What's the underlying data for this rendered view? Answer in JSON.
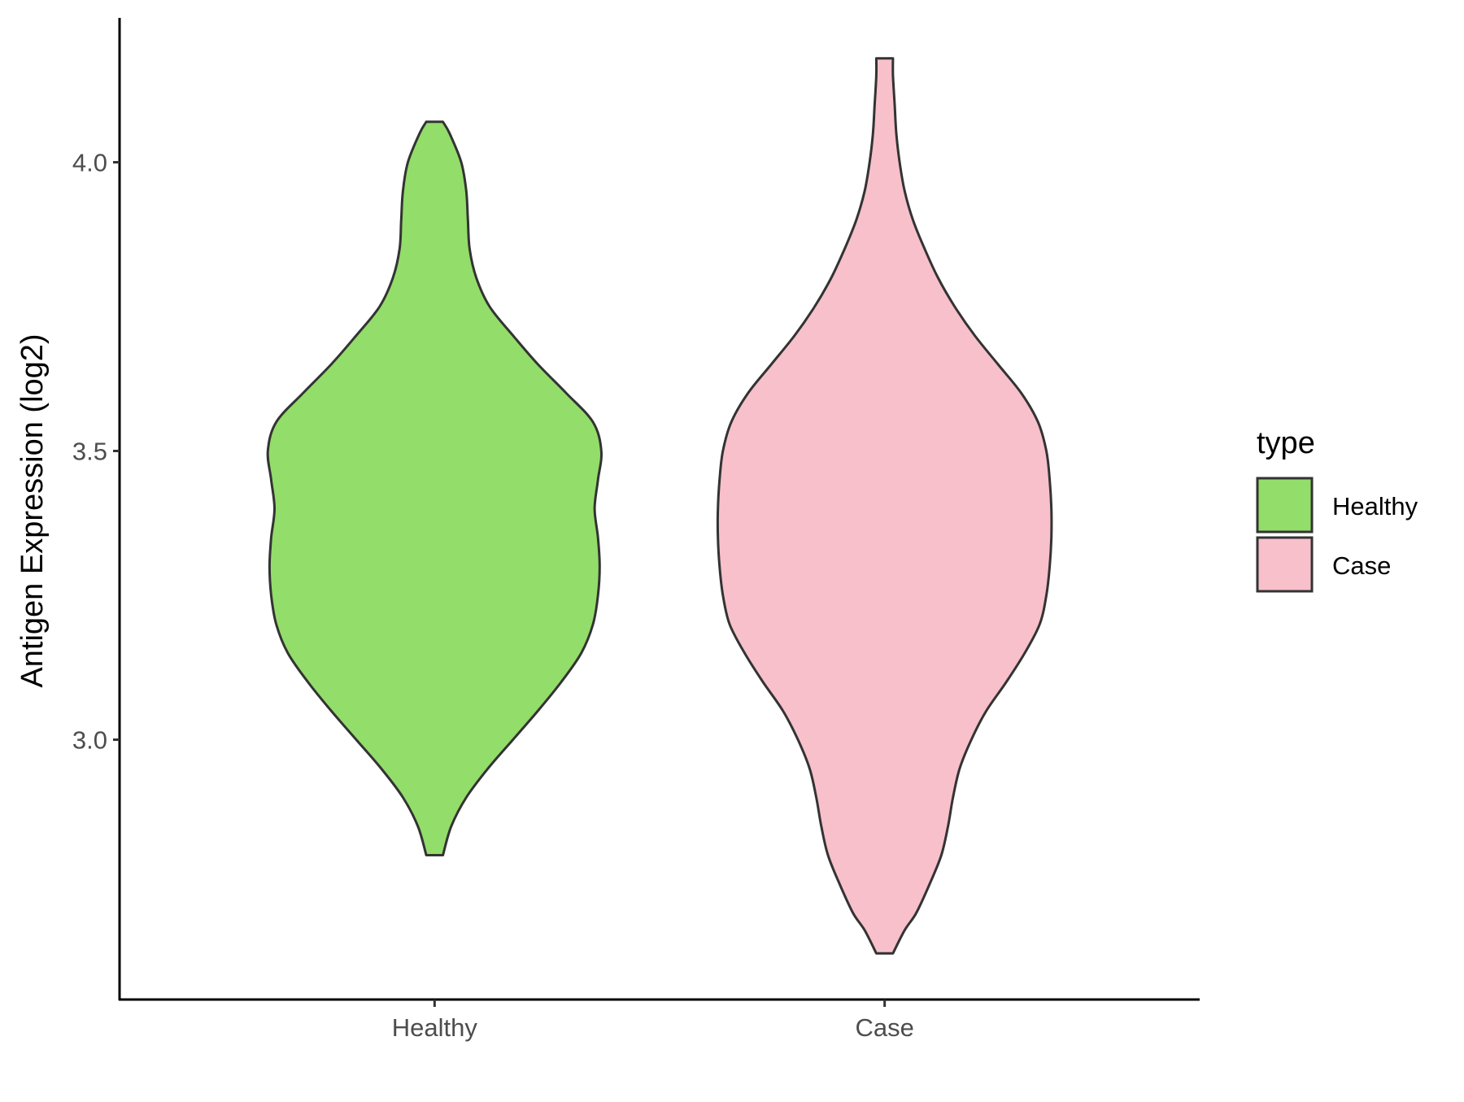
{
  "chart_data": {
    "type": "violin",
    "title": "",
    "xlabel": "",
    "ylabel": "Antigen Expression (log2)",
    "categories": [
      "Healthy",
      "Case"
    ],
    "y_ticks": [
      "3.0",
      "3.5",
      "4.0"
    ],
    "y_tick_values": [
      3.0,
      3.5,
      4.0
    ],
    "ylim": [
      2.55,
      4.25
    ],
    "grid": false,
    "legend": {
      "title": "type",
      "placement": "right",
      "entries": [
        {
          "label": "Healthy",
          "color": "#93DD6A"
        },
        {
          "label": "Case",
          "color": "#F7C0CB"
        }
      ]
    },
    "series": [
      {
        "name": "Healthy",
        "color": "#93DD6A",
        "min": 2.8,
        "max": 4.07,
        "density_profile": [
          [
            2.8,
            0.05
          ],
          [
            2.85,
            0.1
          ],
          [
            2.9,
            0.19
          ],
          [
            2.95,
            0.32
          ],
          [
            3.0,
            0.47
          ],
          [
            3.05,
            0.62
          ],
          [
            3.1,
            0.76
          ],
          [
            3.15,
            0.88
          ],
          [
            3.2,
            0.95
          ],
          [
            3.25,
            0.98
          ],
          [
            3.3,
            0.99
          ],
          [
            3.35,
            0.98
          ],
          [
            3.4,
            0.96
          ],
          [
            3.45,
            0.98
          ],
          [
            3.5,
            1.0
          ],
          [
            3.55,
            0.95
          ],
          [
            3.6,
            0.79
          ],
          [
            3.65,
            0.62
          ],
          [
            3.7,
            0.47
          ],
          [
            3.75,
            0.33
          ],
          [
            3.8,
            0.25
          ],
          [
            3.85,
            0.21
          ],
          [
            3.9,
            0.2
          ],
          [
            3.95,
            0.19
          ],
          [
            4.0,
            0.16
          ],
          [
            4.05,
            0.09
          ],
          [
            4.07,
            0.05
          ]
        ]
      },
      {
        "name": "Case",
        "color": "#F7C0CB",
        "min": 2.63,
        "max": 4.18,
        "density_profile": [
          [
            2.63,
            0.05
          ],
          [
            2.67,
            0.12
          ],
          [
            2.7,
            0.19
          ],
          [
            2.75,
            0.27
          ],
          [
            2.8,
            0.34
          ],
          [
            2.85,
            0.38
          ],
          [
            2.9,
            0.41
          ],
          [
            2.95,
            0.45
          ],
          [
            3.0,
            0.52
          ],
          [
            3.05,
            0.61
          ],
          [
            3.1,
            0.73
          ],
          [
            3.15,
            0.84
          ],
          [
            3.2,
            0.93
          ],
          [
            3.25,
            0.97
          ],
          [
            3.3,
            0.99
          ],
          [
            3.35,
            1.0
          ],
          [
            3.4,
            1.0
          ],
          [
            3.45,
            0.99
          ],
          [
            3.5,
            0.97
          ],
          [
            3.55,
            0.92
          ],
          [
            3.6,
            0.82
          ],
          [
            3.65,
            0.68
          ],
          [
            3.7,
            0.54
          ],
          [
            3.75,
            0.42
          ],
          [
            3.8,
            0.32
          ],
          [
            3.85,
            0.24
          ],
          [
            3.9,
            0.17
          ],
          [
            3.95,
            0.12
          ],
          [
            4.0,
            0.09
          ],
          [
            4.05,
            0.07
          ],
          [
            4.1,
            0.06
          ],
          [
            4.15,
            0.05
          ],
          [
            4.18,
            0.05
          ]
        ]
      }
    ]
  }
}
